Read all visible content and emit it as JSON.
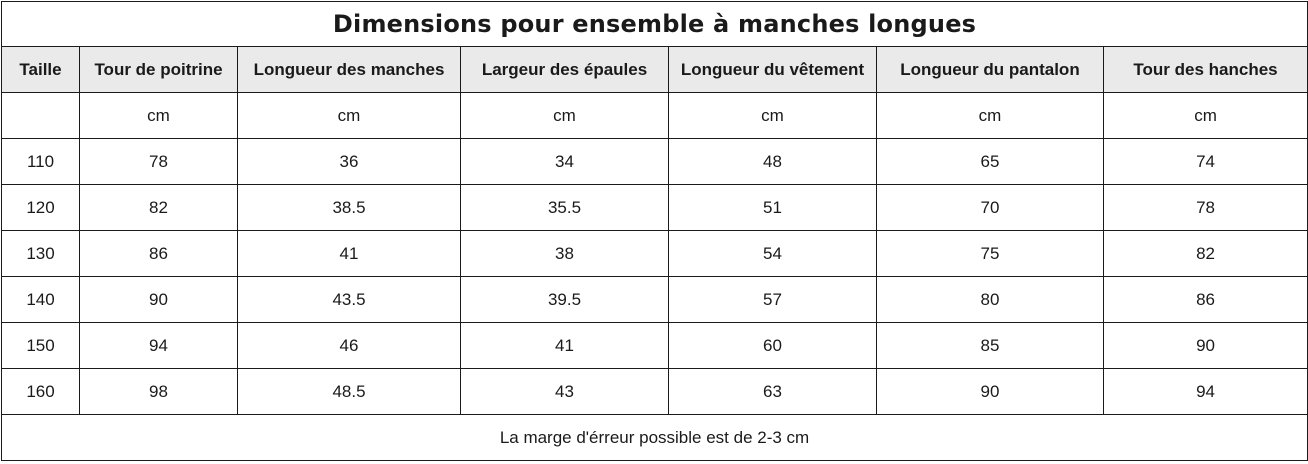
{
  "title": "Dimensions pour ensemble à manches longues",
  "columns": [
    "Taille",
    "Tour de poitrine",
    "Longueur des manches",
    "Largeur des épaules",
    "Longueur du vêtement",
    "Longueur du pantalon",
    "Tour des hanches"
  ],
  "units": [
    "",
    "cm",
    "cm",
    "cm",
    "cm",
    "cm",
    "cm"
  ],
  "rows": [
    [
      "110",
      "78",
      "36",
      "34",
      "48",
      "65",
      "74"
    ],
    [
      "120",
      "82",
      "38.5",
      "35.5",
      "51",
      "70",
      "78"
    ],
    [
      "130",
      "86",
      "41",
      "38",
      "54",
      "75",
      "82"
    ],
    [
      "140",
      "90",
      "43.5",
      "39.5",
      "57",
      "80",
      "86"
    ],
    [
      "150",
      "94",
      "46",
      "41",
      "60",
      "85",
      "90"
    ],
    [
      "160",
      "98",
      "48.5",
      "43",
      "63",
      "90",
      "94"
    ]
  ],
  "footer": "La marge d'érreur possible est de 2-3 cm"
}
